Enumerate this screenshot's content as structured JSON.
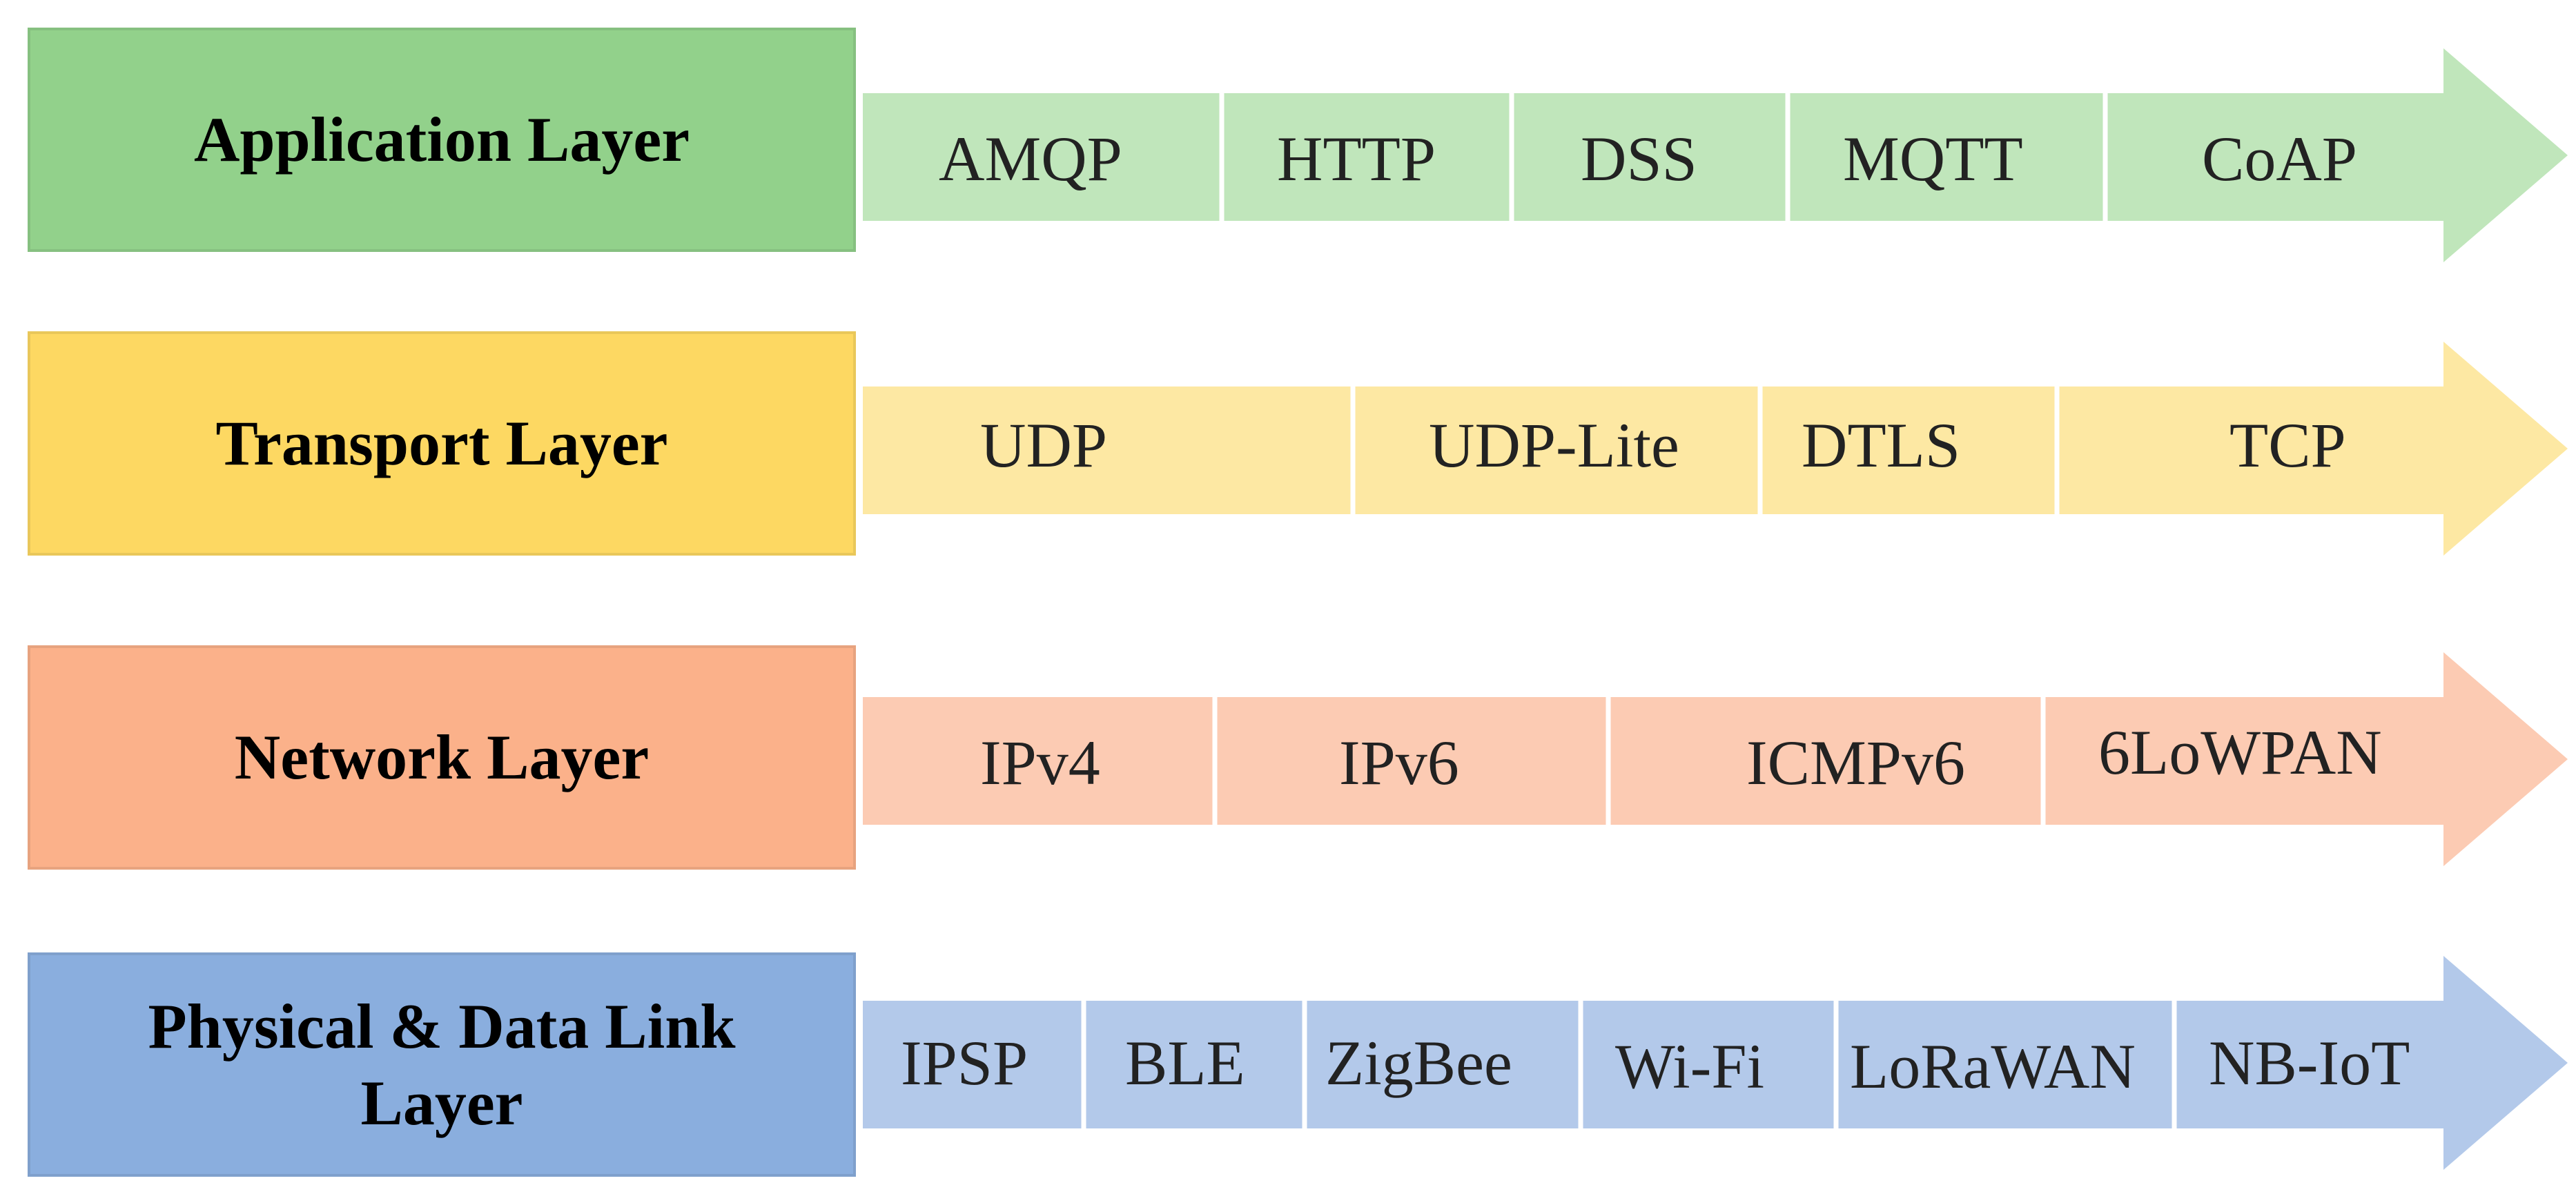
{
  "layers": [
    {
      "name": "Application Layer",
      "label_color": "#92d18b",
      "arrow_color": "#c0e6bb",
      "protocols": [
        "AMQP",
        "HTTP",
        "DSS",
        "MQTT",
        "CoAP"
      ]
    },
    {
      "name": "Transport Layer",
      "label_color": "#fdd862",
      "arrow_color": "#fde8a3",
      "protocols": [
        "UDP",
        "UDP-Lite",
        "DTLS",
        "TCP"
      ]
    },
    {
      "name": "Network Layer",
      "label_color": "#fbb18a",
      "arrow_color": "#fccbb3",
      "protocols": [
        "IPv4",
        "IPv6",
        "ICMPv6",
        "6LoWPAN"
      ]
    },
    {
      "name": "Physical & Data Link Layer",
      "label_color": "#8aaede",
      "arrow_color": "#b3c9ea",
      "protocols": [
        "IPSP",
        "BLE",
        "ZigBee",
        "Wi-Fi",
        "LoRaWAN",
        "NB-IoT"
      ]
    }
  ]
}
